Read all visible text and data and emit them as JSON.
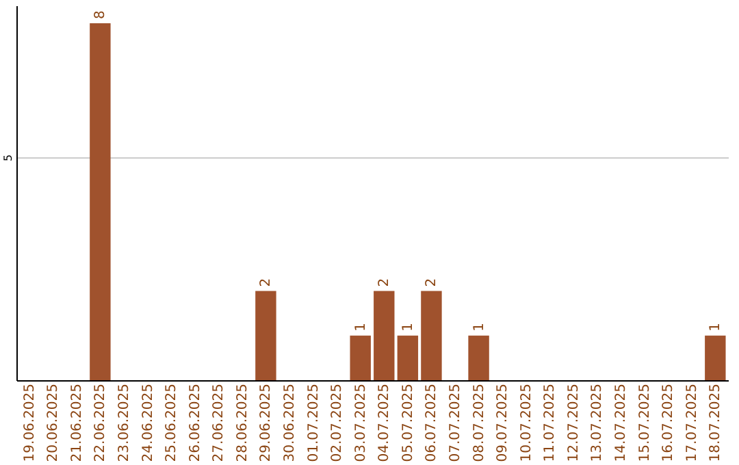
{
  "chart_data": {
    "type": "bar",
    "categories": [
      "19.06.2025",
      "20.06.2025",
      "21.06.2025",
      "22.06.2025",
      "23.06.2025",
      "24.06.2025",
      "25.06.2025",
      "26.06.2025",
      "27.06.2025",
      "28.06.2025",
      "29.06.2025",
      "30.06.2025",
      "01.07.2025",
      "02.07.2025",
      "03.07.2025",
      "04.07.2025",
      "05.07.2025",
      "06.07.2025",
      "07.07.2025",
      "08.07.2025",
      "09.07.2025",
      "10.07.2025",
      "11.07.2025",
      "12.07.2025",
      "13.07.2025",
      "14.07.2025",
      "15.07.2025",
      "16.07.2025",
      "17.07.2025",
      "18.07.2025"
    ],
    "values": [
      null,
      null,
      null,
      8,
      null,
      null,
      null,
      null,
      null,
      null,
      2,
      null,
      null,
      null,
      1,
      2,
      1,
      2,
      null,
      1,
      null,
      null,
      null,
      null,
      null,
      null,
      null,
      null,
      null,
      1
    ],
    "color": "#a0522d",
    "ylim": [
      0,
      8.4
    ],
    "yticks": [
      5
    ],
    "grid": "y",
    "data_labels": true
  }
}
